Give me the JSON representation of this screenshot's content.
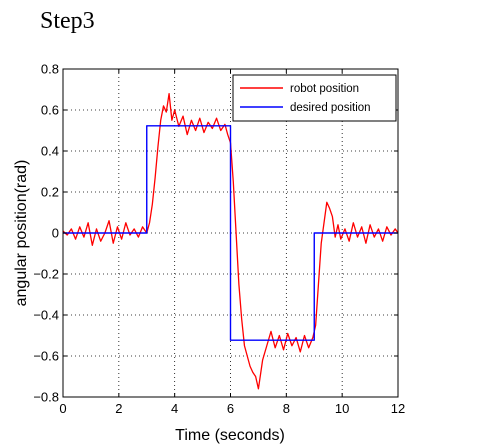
{
  "page_title": "Step3",
  "chart_data": {
    "type": "line",
    "title": "",
    "xlabel": "Time (seconds)",
    "ylabel": "angular position(rad)",
    "xlim": [
      0,
      12
    ],
    "ylim": [
      -0.8,
      0.8
    ],
    "xticks": [
      0,
      2,
      4,
      6,
      8,
      10,
      12
    ],
    "yticks": [
      -0.8,
      -0.6,
      -0.4,
      -0.2,
      0,
      0.2,
      0.4,
      0.6,
      0.8
    ],
    "xtick_labels": [
      "0",
      "2",
      "4",
      "6",
      "8",
      "10",
      "12"
    ],
    "ytick_labels": [
      "−0.8",
      "−0.6",
      "−0.4",
      "−0.2",
      "0",
      "0.2",
      "0.4",
      "0.6",
      "0.8"
    ],
    "grid": true,
    "legend_position": "top-right",
    "series": [
      {
        "name": "robot position",
        "color": "#ff0000",
        "x": [
          0,
          0.15,
          0.3,
          0.45,
          0.6,
          0.75,
          0.9,
          1.05,
          1.2,
          1.35,
          1.5,
          1.65,
          1.8,
          1.95,
          2.1,
          2.25,
          2.4,
          2.55,
          2.7,
          2.85,
          3.0,
          3.1,
          3.2,
          3.3,
          3.4,
          3.5,
          3.6,
          3.7,
          3.8,
          3.9,
          4.0,
          4.15,
          4.3,
          4.45,
          4.6,
          4.75,
          4.9,
          5.05,
          5.2,
          5.35,
          5.5,
          5.65,
          5.8,
          5.9,
          6.0,
          6.1,
          6.2,
          6.3,
          6.4,
          6.5,
          6.6,
          6.7,
          6.8,
          6.9,
          7.0,
          7.15,
          7.3,
          7.45,
          7.6,
          7.75,
          7.9,
          8.05,
          8.2,
          8.35,
          8.5,
          8.65,
          8.8,
          8.95,
          9.05,
          9.15,
          9.25,
          9.35,
          9.45,
          9.55,
          9.65,
          9.75,
          9.85,
          9.95,
          10.1,
          10.25,
          10.4,
          10.55,
          10.7,
          10.85,
          11.0,
          11.15,
          11.3,
          11.45,
          11.6,
          11.75,
          11.9,
          12.0
        ],
        "y": [
          0.01,
          -0.01,
          0.02,
          -0.03,
          0.03,
          -0.02,
          0.05,
          -0.06,
          0.02,
          -0.04,
          0.0,
          0.06,
          -0.05,
          0.03,
          -0.03,
          0.05,
          -0.01,
          0.02,
          -0.02,
          0.03,
          0.0,
          0.05,
          0.14,
          0.27,
          0.42,
          0.55,
          0.62,
          0.59,
          0.68,
          0.55,
          0.6,
          0.52,
          0.57,
          0.48,
          0.55,
          0.5,
          0.56,
          0.49,
          0.54,
          0.51,
          0.56,
          0.5,
          0.53,
          0.48,
          0.44,
          0.25,
          0.0,
          -0.25,
          -0.42,
          -0.55,
          -0.6,
          -0.65,
          -0.68,
          -0.7,
          -0.76,
          -0.62,
          -0.55,
          -0.48,
          -0.56,
          -0.5,
          -0.57,
          -0.49,
          -0.55,
          -0.51,
          -0.58,
          -0.5,
          -0.56,
          -0.51,
          -0.45,
          -0.25,
          -0.05,
          0.05,
          0.15,
          0.12,
          0.08,
          -0.02,
          0.04,
          -0.03,
          0.02,
          -0.04,
          0.05,
          -0.02,
          0.03,
          -0.05,
          0.04,
          -0.02,
          0.02,
          -0.04,
          0.03,
          -0.01,
          0.02,
          0.0
        ]
      },
      {
        "name": "desired position",
        "color": "#0000ff",
        "x": [
          0,
          3,
          3,
          6,
          6,
          9,
          9,
          12
        ],
        "y": [
          0,
          0,
          0.523,
          0.523,
          -0.523,
          -0.523,
          0,
          0
        ]
      }
    ]
  }
}
